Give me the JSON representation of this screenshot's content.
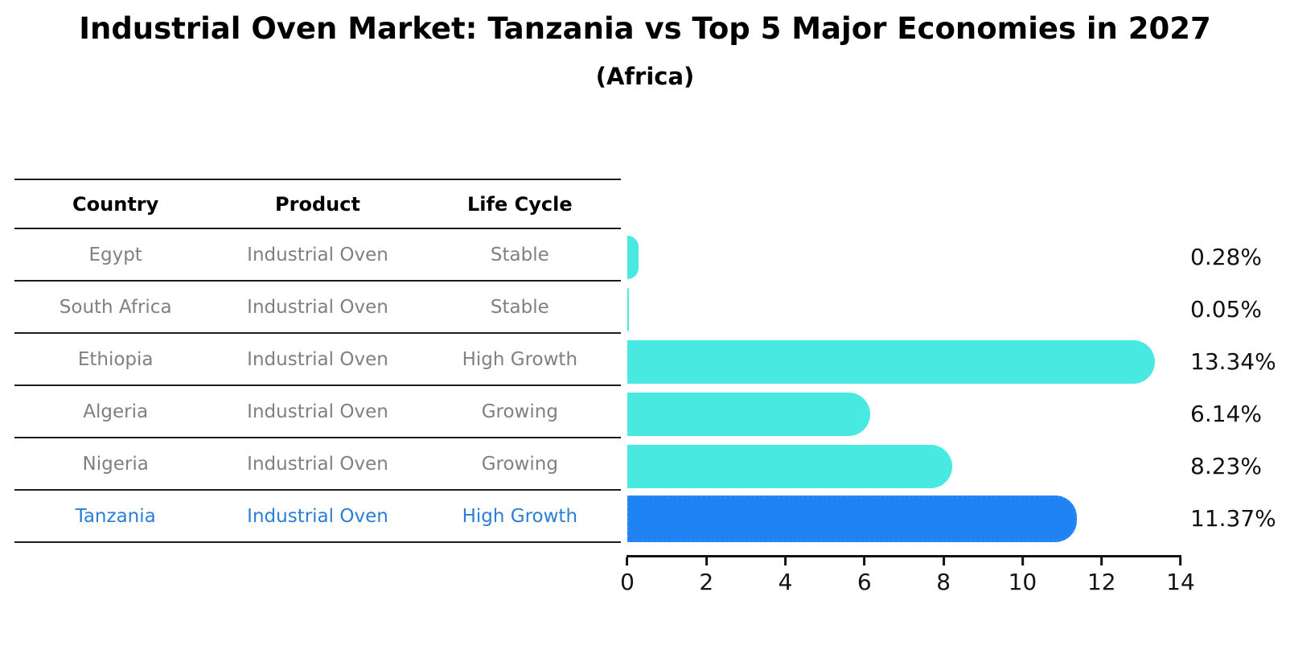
{
  "title": "Industrial Oven Market: Tanzania vs Top 5 Major Economies in 2027",
  "subtitle": "(Africa)",
  "table": {
    "headers": [
      "Country",
      "Product",
      "Life Cycle"
    ],
    "rows": [
      {
        "country": "Egypt",
        "product": "Industrial Oven",
        "life_cycle": "Stable"
      },
      {
        "country": "South Africa",
        "product": "Industrial Oven",
        "life_cycle": "Stable"
      },
      {
        "country": "Ethiopia",
        "product": "Industrial Oven",
        "life_cycle": "High Growth"
      },
      {
        "country": "Algeria",
        "product": "Industrial Oven",
        "life_cycle": "Growing"
      },
      {
        "country": "Nigeria",
        "product": "Industrial Oven",
        "life_cycle": "Growing"
      },
      {
        "country": "Tanzania",
        "product": "Industrial Oven",
        "life_cycle": "High Growth"
      }
    ],
    "highlighted_row": "Tanzania"
  },
  "chart_data": {
    "type": "bar",
    "orientation": "horizontal",
    "title": "Industrial Oven Market: Tanzania vs Top 5 Major Economies in 2027",
    "subtitle": "(Africa)",
    "categories": [
      "Egypt",
      "South Africa",
      "Ethiopia",
      "Algeria",
      "Nigeria",
      "Tanzania"
    ],
    "values": [
      0.28,
      0.05,
      13.34,
      6.14,
      8.23,
      11.37
    ],
    "value_labels": [
      "0.28%",
      "0.05%",
      "13.34%",
      "6.14%",
      "8.23%",
      "11.37%"
    ],
    "xlim": [
      0,
      14
    ],
    "x_ticks": [
      0,
      2,
      4,
      6,
      8,
      10,
      12,
      14
    ],
    "highlight_index": 5,
    "grid": false,
    "legend": false
  },
  "colors": {
    "bar": "#48e9e1",
    "highlight_bar": "#1e82f2",
    "highlight_bar_edge": "#2b8af5",
    "highlight_text": "#2a7fd4",
    "table_text": "#808080",
    "header_text": "#000000",
    "axis": "#131313"
  }
}
